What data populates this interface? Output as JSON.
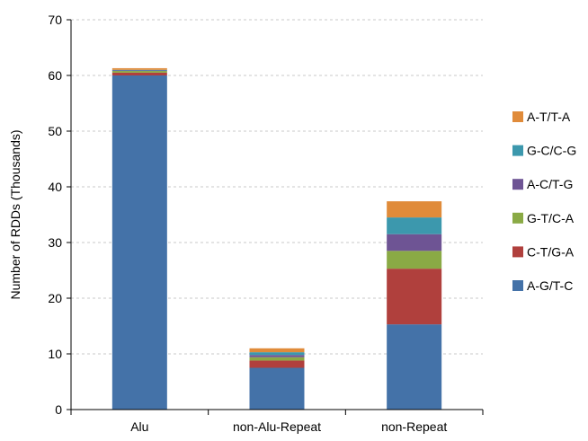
{
  "chart_data": {
    "type": "bar",
    "stacked": true,
    "title": "",
    "xlabel": "",
    "ylabel": "Number of RDDs (Thousands)",
    "ylim": [
      0,
      70
    ],
    "yticks": [
      0,
      10,
      20,
      30,
      40,
      50,
      60,
      70
    ],
    "grid": "horizontal-dashed",
    "legend_position": "right",
    "categories": [
      "Alu",
      "non-Alu-Repeat",
      "non-Repeat"
    ],
    "series": [
      {
        "name": "A-G/T-C",
        "color": "#4472a8",
        "values": [
          60.0,
          7.5,
          15.3
        ]
      },
      {
        "name": "C-T/G-A",
        "color": "#b0403d",
        "values": [
          0.5,
          1.3,
          10.0
        ]
      },
      {
        "name": "G-T/C-A",
        "color": "#8aaa45",
        "values": [
          0.3,
          0.6,
          3.2
        ]
      },
      {
        "name": "A-C/T-G",
        "color": "#6e5494",
        "values": [
          0.1,
          0.4,
          3.0
        ]
      },
      {
        "name": "G-C/C-G",
        "color": "#3c98ad",
        "values": [
          0.1,
          0.5,
          3.0
        ]
      },
      {
        "name": "A-T/T-A",
        "color": "#e08b3a",
        "values": [
          0.3,
          0.7,
          2.9
        ]
      }
    ]
  }
}
